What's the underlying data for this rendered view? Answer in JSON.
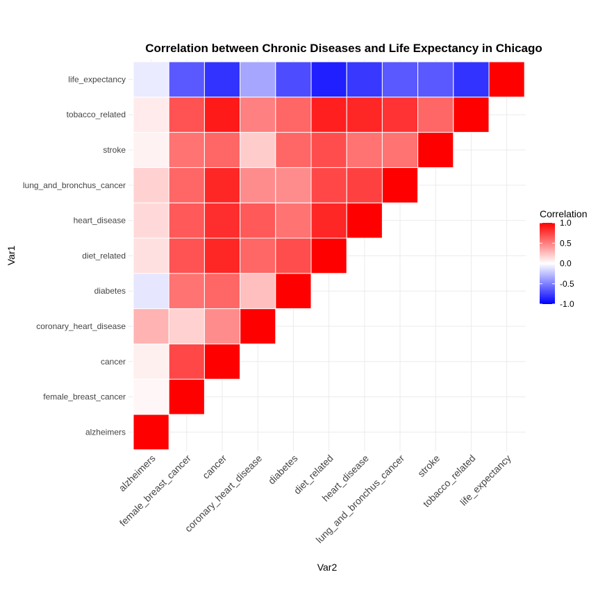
{
  "chart_data": {
    "type": "heatmap",
    "title": "Correlation between Chronic Diseases and Life Expectancy in Chicago",
    "xlabel": "Var2",
    "ylabel": "Var1",
    "variables": [
      "alzheimers",
      "female_breast_cancer",
      "cancer",
      "coronary_heart_disease",
      "diabetes",
      "diet_related",
      "heart_disease",
      "lung_and_bronchus_cancer",
      "stroke",
      "tobacco_related",
      "life_expectancy"
    ],
    "matrix_lower": [
      [
        1.0
      ],
      [
        0.03,
        1.0
      ],
      [
        0.06,
        0.72,
        1.0
      ],
      [
        0.3,
        0.18,
        0.45,
        1.0
      ],
      [
        -0.1,
        0.55,
        0.6,
        0.25,
        1.0
      ],
      [
        0.12,
        0.68,
        0.85,
        0.6,
        0.7,
        1.0
      ],
      [
        0.15,
        0.65,
        0.82,
        0.65,
        0.55,
        0.85,
        1.0
      ],
      [
        0.18,
        0.6,
        0.85,
        0.45,
        0.45,
        0.72,
        0.75,
        1.0
      ],
      [
        0.05,
        0.55,
        0.6,
        0.2,
        0.6,
        0.7,
        0.55,
        0.55,
        1.0
      ],
      [
        0.08,
        0.68,
        0.9,
        0.5,
        0.6,
        0.88,
        0.85,
        0.8,
        0.6,
        1.0
      ],
      [
        -0.08,
        -0.65,
        -0.8,
        -0.35,
        -0.7,
        -0.88,
        -0.78,
        -0.65,
        -0.65,
        -0.8,
        1.0
      ]
    ],
    "color_scale": {
      "low": "#0000FF",
      "mid": "#FFFFFF",
      "high": "#FF0000",
      "limits": [
        -1,
        1
      ]
    },
    "legend": {
      "title": "Correlation",
      "breaks": [
        "1.0",
        "0.5",
        "0.0",
        "-0.5",
        "-1.0"
      ],
      "position": "right"
    },
    "grid": true
  }
}
